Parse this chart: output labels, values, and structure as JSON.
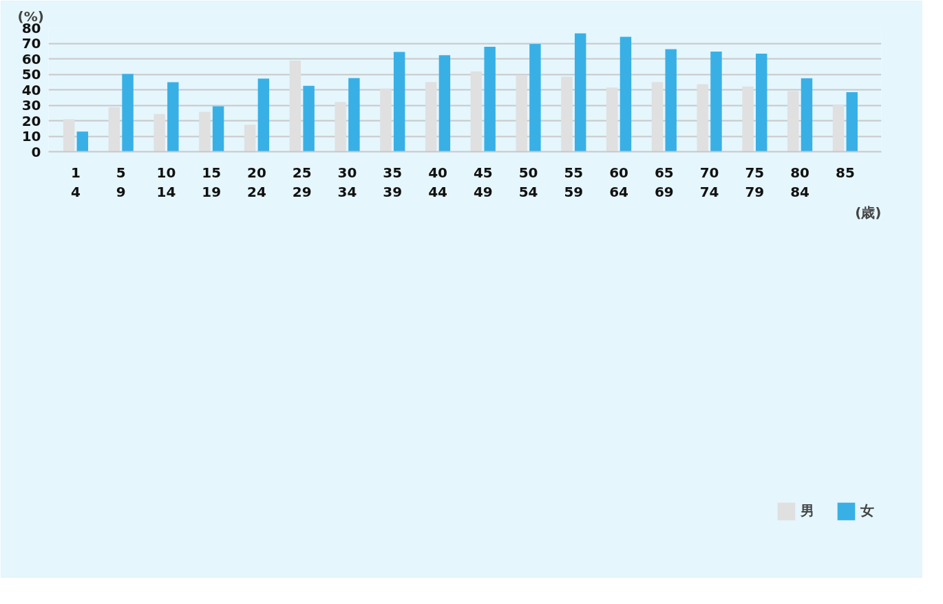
{
  "chart_data": {
    "type": "bar",
    "xlabel": "(歳)",
    "ylabel": "(%)",
    "categories": [
      "1\n4",
      "5\n9",
      "10\n14",
      "15\n19",
      "20\n24",
      "25\n29",
      "30\n34",
      "35\n39",
      "40\n44",
      "45\n49",
      "50\n54",
      "55\n59",
      "60\n64",
      "65\n69",
      "70\n74",
      "75\n79",
      "80\n84",
      "85"
    ],
    "series": [
      {
        "name": "男",
        "color": "#e0e0e0",
        "values": [
          21.0,
          28.7,
          24.3,
          25.8,
          17.5,
          58.9,
          32.1,
          40.8,
          45.0,
          51.9,
          49.6,
          48.5,
          41.5,
          45.0,
          43.6,
          42.1,
          39.1,
          30.0
        ]
      },
      {
        "name": "女",
        "color": "#38b0e6",
        "values": [
          13.0,
          50.2,
          44.9,
          29.3,
          47.2,
          42.6,
          47.6,
          64.5,
          62.3,
          67.8,
          69.6,
          76.5,
          74.2,
          66.2,
          64.7,
          63.3,
          47.4,
          38.4
        ]
      }
    ],
    "ylim": [
      0,
      80
    ],
    "yticks": [
      0,
      10,
      20,
      30,
      40,
      50,
      60,
      70,
      80
    ],
    "grid": "y",
    "legend": "bottom right"
  }
}
